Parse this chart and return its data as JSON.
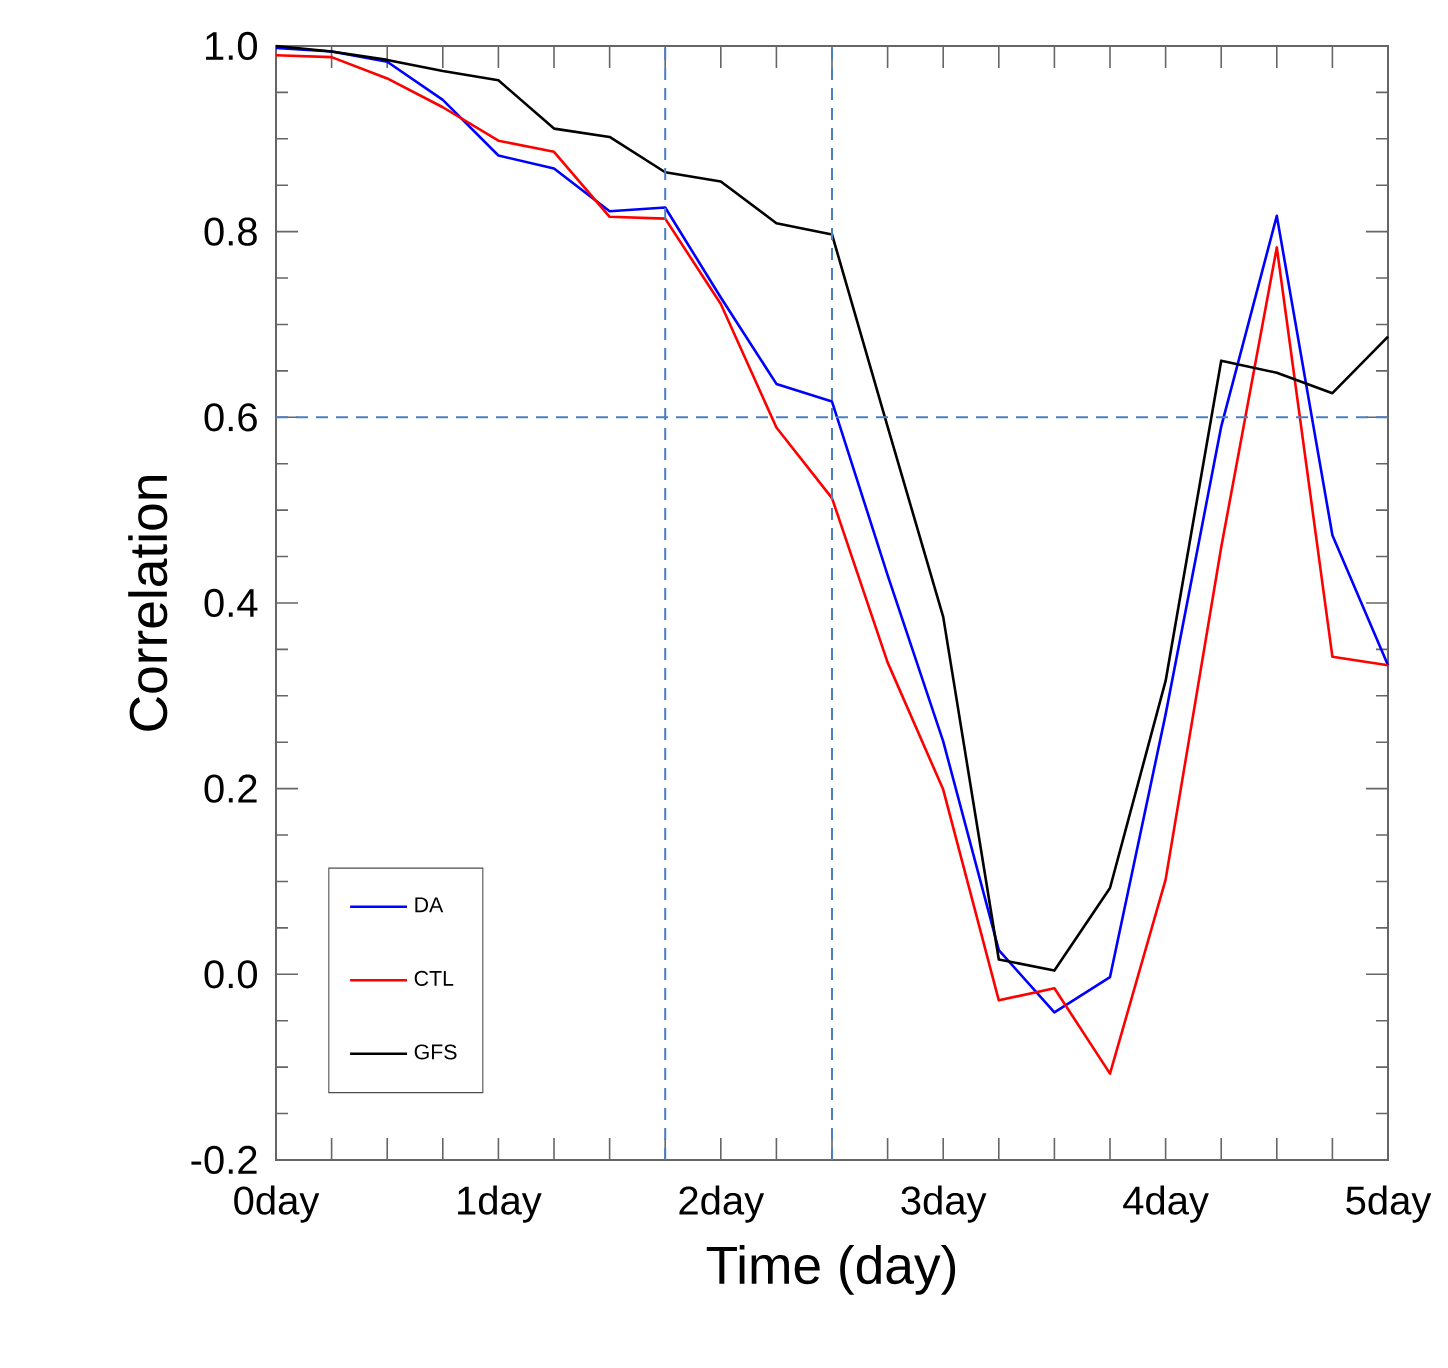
{
  "chart_data": {
    "type": "line",
    "xlabel": "Time (day)",
    "ylabel": "Correlation",
    "x": [
      0,
      0.25,
      0.5,
      0.75,
      1,
      1.25,
      1.5,
      1.75,
      2,
      2.25,
      2.5,
      2.75,
      3,
      3.25,
      3.5,
      3.75,
      4,
      4.25,
      4.5,
      4.75,
      5
    ],
    "series": [
      {
        "name": "DA",
        "color": "#0000ff",
        "values": [
          0.998,
          0.994,
          0.983,
          0.942,
          0.882,
          0.868,
          0.822,
          0.826,
          0.729,
          0.636,
          0.617,
          0.43,
          0.251,
          0.026,
          -0.041,
          -0.003,
          0.28,
          0.59,
          0.817,
          0.473,
          0.333
        ]
      },
      {
        "name": "CTL",
        "color": "#ff0000",
        "values": [
          0.99,
          0.988,
          0.965,
          0.934,
          0.898,
          0.886,
          0.816,
          0.814,
          0.722,
          0.589,
          0.513,
          0.336,
          0.199,
          -0.028,
          -0.015,
          -0.107,
          0.102,
          0.46,
          0.783,
          0.342,
          0.333
        ]
      },
      {
        "name": "GFS",
        "color": "#000000",
        "values": [
          1.0,
          0.994,
          0.985,
          0.973,
          0.963,
          0.911,
          0.902,
          0.864,
          0.854,
          0.809,
          0.797,
          0.59,
          0.385,
          0.016,
          0.004,
          0.093,
          0.316,
          0.661,
          0.648,
          0.626,
          0.687
        ]
      }
    ],
    "xlim": [
      0,
      5
    ],
    "ylim": [
      -0.2,
      1.0
    ],
    "xticks": [
      {
        "value": 0,
        "label": "0day"
      },
      {
        "value": 0.25,
        "label": null
      },
      {
        "value": 0.5,
        "label": null
      },
      {
        "value": 0.75,
        "label": null
      },
      {
        "value": 1,
        "label": "1day"
      },
      {
        "value": 1.25,
        "label": null
      },
      {
        "value": 1.5,
        "label": null
      },
      {
        "value": 1.75,
        "label": null
      },
      {
        "value": 2,
        "label": "2day"
      },
      {
        "value": 2.25,
        "label": null
      },
      {
        "value": 2.5,
        "label": null
      },
      {
        "value": 2.75,
        "label": null
      },
      {
        "value": 3,
        "label": "3day"
      },
      {
        "value": 3.25,
        "label": null
      },
      {
        "value": 3.5,
        "label": null
      },
      {
        "value": 3.75,
        "label": null
      },
      {
        "value": 4,
        "label": "4day"
      },
      {
        "value": 4.25,
        "label": null
      },
      {
        "value": 4.5,
        "label": null
      },
      {
        "value": 4.75,
        "label": null
      },
      {
        "value": 5,
        "label": "5day"
      }
    ],
    "yticks": [
      {
        "value": -0.2,
        "label": "-0.2"
      },
      {
        "value": 0.0,
        "label": "0.0"
      },
      {
        "value": 0.2,
        "label": "0.2"
      },
      {
        "value": 0.4,
        "label": "0.4"
      },
      {
        "value": 0.6,
        "label": "0.6"
      },
      {
        "value": 0.8,
        "label": "0.8"
      },
      {
        "value": 1.0,
        "label": "1.0"
      }
    ],
    "ref_lines": [
      {
        "axis": "x",
        "value": 1.75,
        "color": "#4a7fc0",
        "line_style": "dashed"
      },
      {
        "axis": "x",
        "value": 2.5,
        "color": "#4a7fc0",
        "line_style": "dashed"
      },
      {
        "axis": "y",
        "value": 0.6,
        "color": "#4a7fc0",
        "line_style": "dashed"
      }
    ],
    "grid": false,
    "legend": "bottom left",
    "marker": "none",
    "line_style": "solid"
  }
}
